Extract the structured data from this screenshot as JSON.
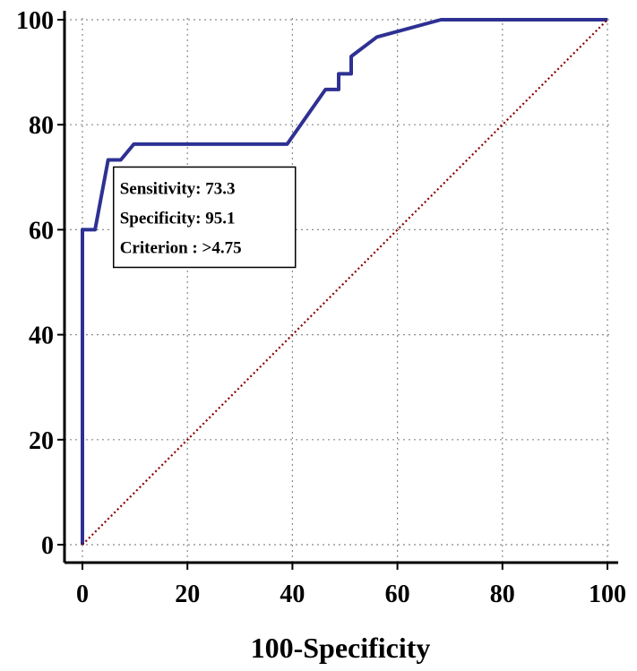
{
  "chart_data": {
    "type": "line",
    "title": "",
    "xlabel": "100-Specificity",
    "ylabel": "",
    "xlim": [
      0,
      100
    ],
    "ylim": [
      0,
      100
    ],
    "x_ticks": [
      "0",
      "20",
      "40",
      "60",
      "80",
      "100"
    ],
    "y_ticks": [
      "0",
      "20",
      "40",
      "60",
      "80",
      "100"
    ],
    "grid": true,
    "series": [
      {
        "color": "#2e3192",
        "points": [
          [
            0,
            0
          ],
          [
            0,
            60
          ],
          [
            2.4,
            60
          ],
          [
            4.9,
            73.3
          ],
          [
            7.3,
            73.3
          ],
          [
            9.8,
            76.3
          ],
          [
            39,
            76.3
          ],
          [
            46.3,
            86.7
          ],
          [
            48.8,
            86.7
          ],
          [
            48.8,
            89.7
          ],
          [
            51.2,
            89.7
          ],
          [
            51.2,
            93
          ],
          [
            56.1,
            96.7
          ],
          [
            68.3,
            100
          ],
          [
            100,
            100
          ]
        ]
      },
      {
        "color": "#8b0000",
        "style": "dotted",
        "points": [
          [
            0,
            0
          ],
          [
            100,
            100
          ]
        ]
      }
    ],
    "annotation": {
      "lines": [
        "Sensitivity: 73.3",
        "Specificity: 95.1",
        "Criterion : >4.75"
      ],
      "anchor": [
        4.9,
        73.3
      ]
    }
  }
}
